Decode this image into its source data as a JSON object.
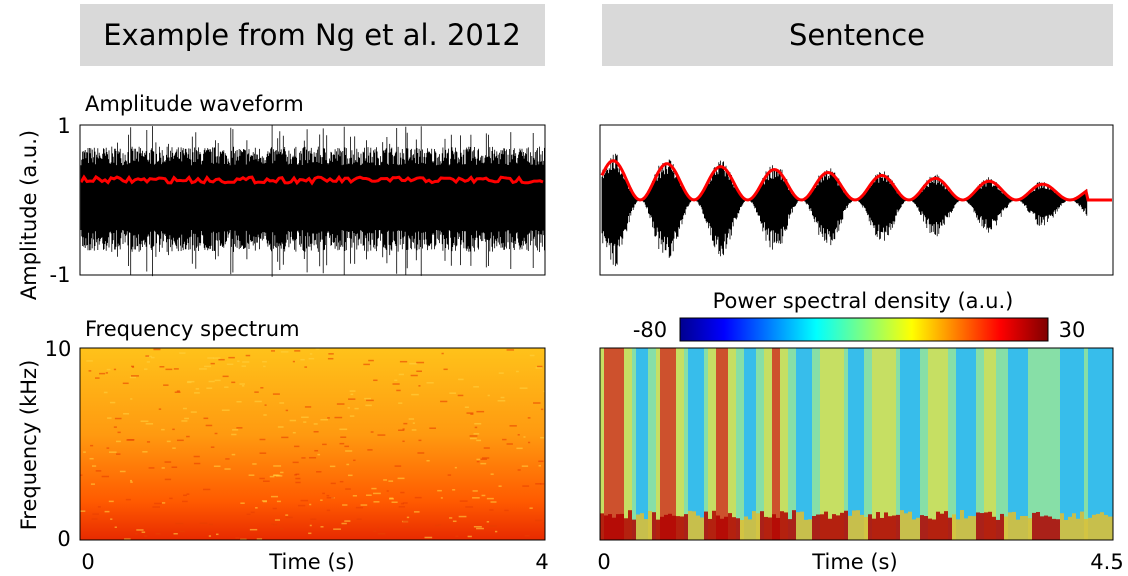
{
  "left": {
    "header": "Example from Ng et al. 2012",
    "waveform": {
      "title": "Amplitude waveform",
      "ylabel": "Amplitude (a.u.)",
      "yticks": [
        "1",
        "-1"
      ]
    },
    "spectrum": {
      "title": "Frequency spectrum",
      "ylabel": "Frequency (kHz)",
      "yticks": [
        "10",
        "0"
      ]
    },
    "xlabel": "Time (s)",
    "xticks": [
      "0",
      "4"
    ]
  },
  "right": {
    "header": "Sentence",
    "colorbar": {
      "title": "Power spectral density (a.u.)",
      "ticks": [
        "-80",
        "30"
      ]
    },
    "xlabel": "Time (s)",
    "xticks": [
      "0",
      "4.5"
    ]
  }
}
